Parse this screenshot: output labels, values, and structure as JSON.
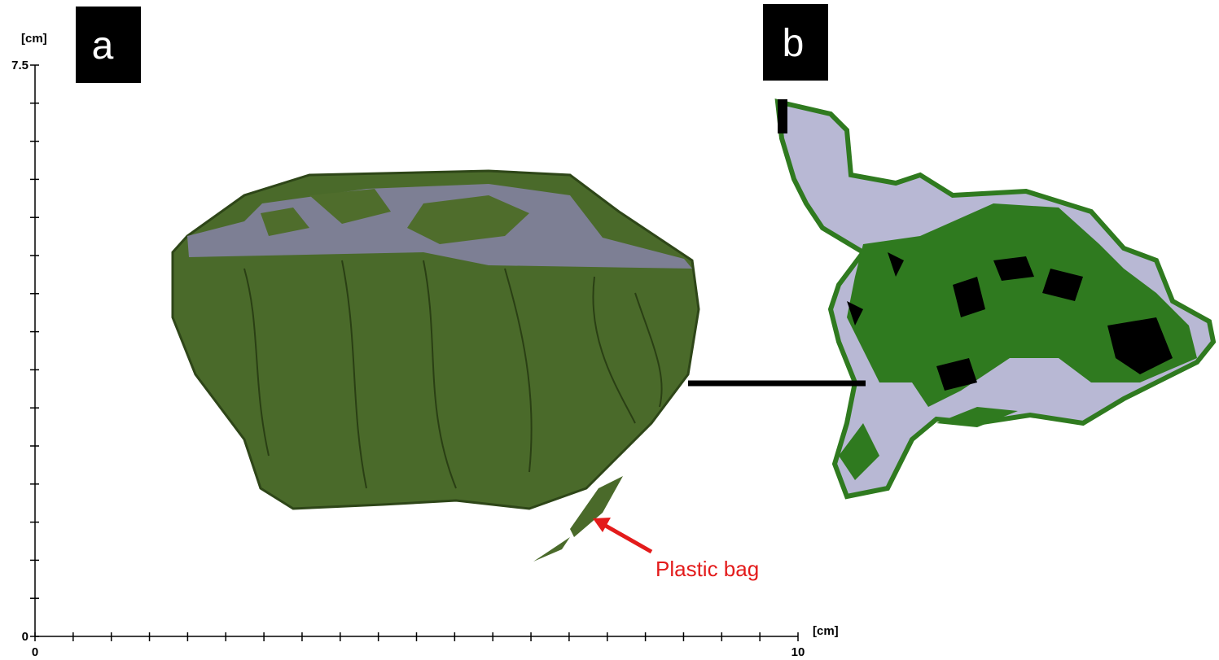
{
  "panel_a": {
    "label": "a",
    "annotation": "Plastic bag"
  },
  "panel_b": {
    "label": "b"
  },
  "axes": {
    "y_unit": "[cm]",
    "x_unit": "[cm]",
    "ylim": [
      0,
      7.5
    ],
    "xlim": [
      0,
      10
    ],
    "yticks": [
      0,
      0.5,
      1,
      1.5,
      2,
      2.5,
      3,
      3.5,
      4,
      4.5,
      5,
      5.5,
      6,
      6.5,
      7,
      7.5
    ],
    "xticks": [
      0,
      0.5,
      1,
      1.5,
      2,
      2.5,
      3,
      3.5,
      4,
      4.5,
      5,
      5.5,
      6,
      6.5,
      7,
      7.5,
      8,
      8.5,
      9,
      9.5,
      10
    ],
    "ytick_labels": [
      0,
      7.5
    ],
    "xtick_labels": [
      0,
      10
    ]
  }
}
